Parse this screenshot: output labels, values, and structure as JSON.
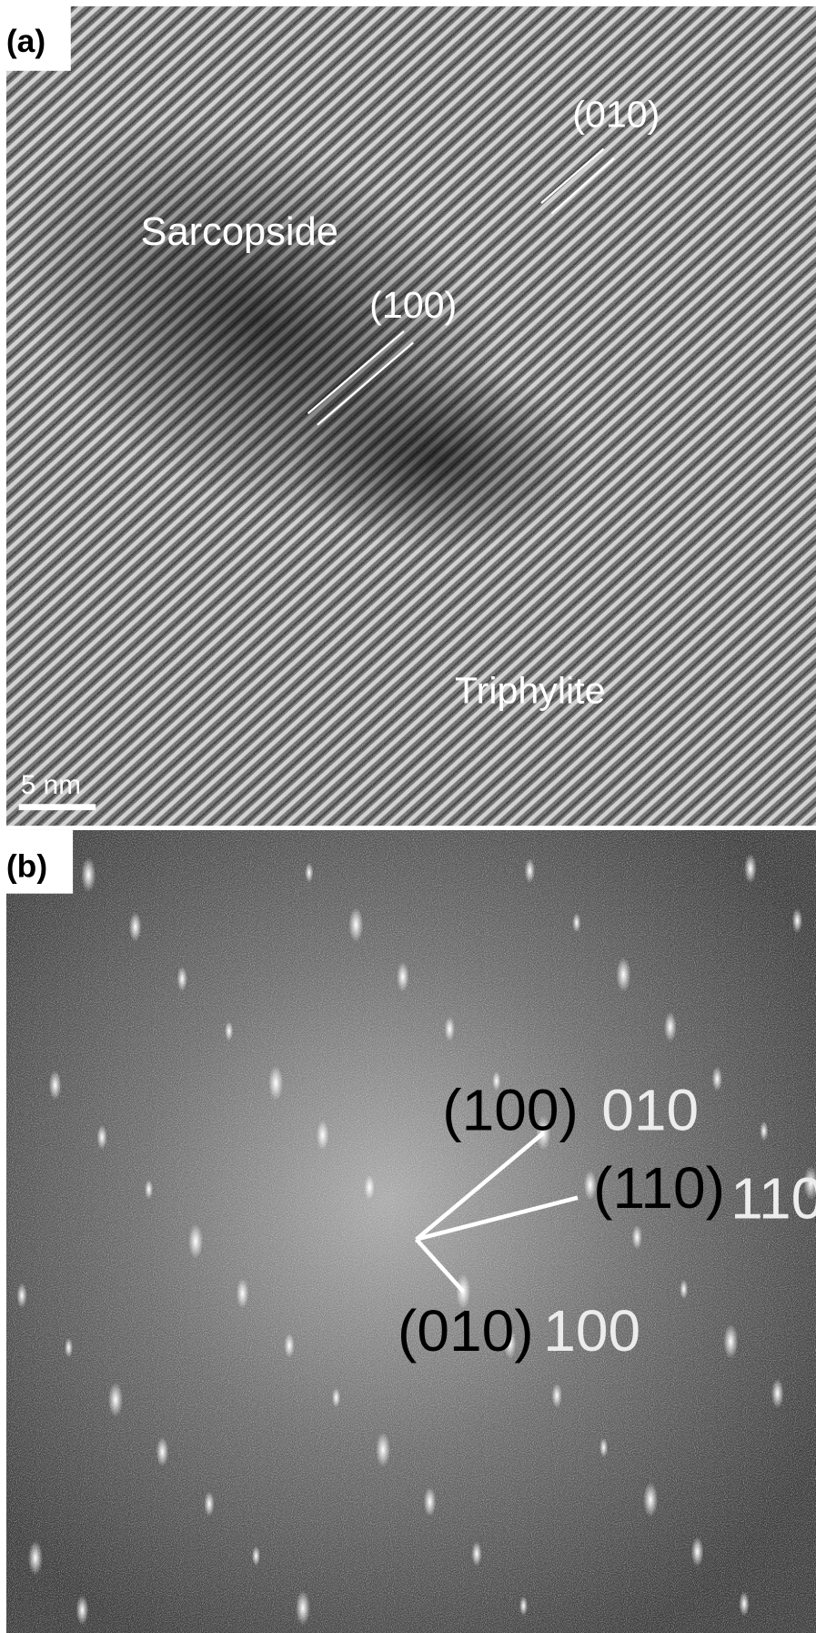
{
  "panel_a": {
    "label": "(a)",
    "plane_1": "(010)",
    "phase_1": "Sarcopside",
    "plane_2": "(100)",
    "phase_2": "Triphylite",
    "scale_bar": "5 nm"
  },
  "panel_b": {
    "label": "(b)",
    "spots": [
      {
        "plane": "(100)",
        "index": "010"
      },
      {
        "plane": "(110)",
        "index": "110"
      },
      {
        "plane": "(010)",
        "index": "100"
      }
    ]
  }
}
